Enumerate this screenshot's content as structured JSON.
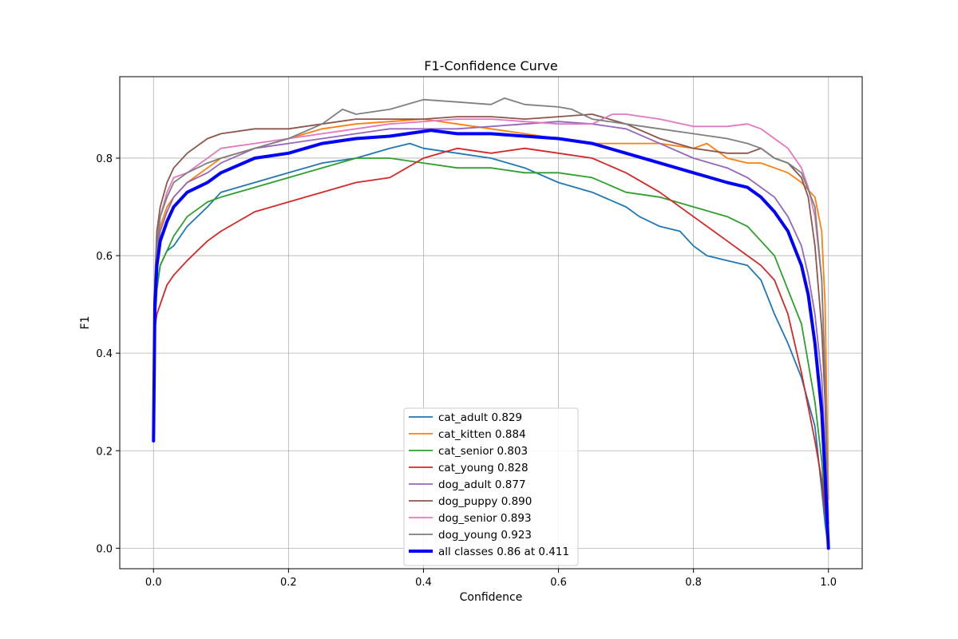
{
  "chart_data": {
    "type": "line",
    "title": "F1-Confidence Curve",
    "xlabel": "Confidence",
    "ylabel": "F1",
    "xlim": [
      -0.05,
      1.05
    ],
    "ylim": [
      -0.042,
      0.967
    ],
    "xticks": [
      0.0,
      0.2,
      0.4,
      0.6,
      0.8,
      1.0
    ],
    "xtick_labels": [
      "0.0",
      "0.2",
      "0.4",
      "0.6",
      "0.8",
      "1.0"
    ],
    "yticks": [
      0.0,
      0.2,
      0.4,
      0.6,
      0.8
    ],
    "ytick_labels": [
      "0.0",
      "0.2",
      "0.4",
      "0.6",
      "0.8"
    ],
    "grid": true,
    "legend_position": "bottom-center",
    "series": [
      {
        "name": "cat_adult 0.829",
        "color": "#1f77b4",
        "width": 1.8,
        "x": [
          0.0,
          0.002,
          0.005,
          0.01,
          0.02,
          0.03,
          0.05,
          0.08,
          0.1,
          0.15,
          0.2,
          0.25,
          0.3,
          0.35,
          0.38,
          0.4,
          0.45,
          0.5,
          0.55,
          0.6,
          0.65,
          0.7,
          0.72,
          0.75,
          0.78,
          0.8,
          0.82,
          0.85,
          0.88,
          0.9,
          0.92,
          0.94,
          0.96,
          0.98,
          0.99,
          0.995,
          1.0
        ],
        "y": [
          0.22,
          0.45,
          0.53,
          0.58,
          0.61,
          0.62,
          0.66,
          0.7,
          0.73,
          0.75,
          0.77,
          0.79,
          0.8,
          0.82,
          0.83,
          0.82,
          0.81,
          0.8,
          0.78,
          0.75,
          0.73,
          0.7,
          0.68,
          0.66,
          0.65,
          0.62,
          0.6,
          0.59,
          0.58,
          0.55,
          0.48,
          0.42,
          0.35,
          0.25,
          0.12,
          0.05,
          0.0
        ]
      },
      {
        "name": "cat_kitten 0.884",
        "color": "#ff7f0e",
        "width": 1.8,
        "x": [
          0.0,
          0.002,
          0.005,
          0.01,
          0.02,
          0.03,
          0.05,
          0.08,
          0.1,
          0.15,
          0.2,
          0.25,
          0.3,
          0.35,
          0.4,
          0.45,
          0.5,
          0.55,
          0.6,
          0.65,
          0.7,
          0.75,
          0.8,
          0.82,
          0.85,
          0.88,
          0.9,
          0.92,
          0.94,
          0.96,
          0.98,
          0.99,
          0.995,
          1.0
        ],
        "y": [
          0.22,
          0.5,
          0.6,
          0.66,
          0.7,
          0.72,
          0.75,
          0.78,
          0.8,
          0.82,
          0.84,
          0.86,
          0.87,
          0.875,
          0.88,
          0.87,
          0.86,
          0.85,
          0.84,
          0.83,
          0.83,
          0.83,
          0.82,
          0.83,
          0.8,
          0.79,
          0.79,
          0.78,
          0.77,
          0.75,
          0.72,
          0.65,
          0.5,
          0.1
        ]
      },
      {
        "name": "cat_senior 0.803",
        "color": "#2ca02c",
        "width": 1.8,
        "x": [
          0.0,
          0.002,
          0.005,
          0.01,
          0.02,
          0.03,
          0.05,
          0.08,
          0.1,
          0.15,
          0.2,
          0.25,
          0.3,
          0.35,
          0.4,
          0.45,
          0.5,
          0.55,
          0.6,
          0.65,
          0.7,
          0.75,
          0.8,
          0.85,
          0.88,
          0.9,
          0.92,
          0.94,
          0.96,
          0.97,
          0.98,
          0.99,
          0.995,
          1.0
        ],
        "y": [
          0.22,
          0.48,
          0.54,
          0.58,
          0.61,
          0.64,
          0.68,
          0.71,
          0.72,
          0.74,
          0.76,
          0.78,
          0.8,
          0.8,
          0.79,
          0.78,
          0.78,
          0.77,
          0.77,
          0.76,
          0.73,
          0.72,
          0.7,
          0.68,
          0.66,
          0.63,
          0.6,
          0.53,
          0.46,
          0.38,
          0.3,
          0.18,
          0.08,
          0.0
        ]
      },
      {
        "name": "cat_young 0.828",
        "color": "#d62728",
        "width": 1.8,
        "x": [
          0.0,
          0.002,
          0.005,
          0.01,
          0.02,
          0.03,
          0.05,
          0.08,
          0.1,
          0.15,
          0.2,
          0.25,
          0.3,
          0.35,
          0.4,
          0.45,
          0.5,
          0.55,
          0.6,
          0.65,
          0.7,
          0.75,
          0.8,
          0.85,
          0.88,
          0.9,
          0.92,
          0.94,
          0.96,
          0.98,
          0.99,
          0.995,
          1.0
        ],
        "y": [
          0.22,
          0.45,
          0.48,
          0.5,
          0.54,
          0.56,
          0.59,
          0.63,
          0.65,
          0.69,
          0.71,
          0.73,
          0.75,
          0.76,
          0.8,
          0.82,
          0.81,
          0.82,
          0.81,
          0.8,
          0.77,
          0.73,
          0.68,
          0.63,
          0.6,
          0.58,
          0.55,
          0.48,
          0.36,
          0.22,
          0.14,
          0.08,
          0.02
        ]
      },
      {
        "name": "dog_adult 0.877",
        "color": "#9467bd",
        "width": 1.8,
        "x": [
          0.0,
          0.002,
          0.005,
          0.01,
          0.02,
          0.03,
          0.05,
          0.08,
          0.1,
          0.15,
          0.2,
          0.25,
          0.3,
          0.35,
          0.4,
          0.45,
          0.5,
          0.55,
          0.6,
          0.65,
          0.7,
          0.75,
          0.8,
          0.85,
          0.88,
          0.9,
          0.92,
          0.94,
          0.96,
          0.97,
          0.98,
          0.99,
          0.995,
          1.0
        ],
        "y": [
          0.22,
          0.5,
          0.6,
          0.65,
          0.69,
          0.72,
          0.75,
          0.77,
          0.79,
          0.82,
          0.83,
          0.84,
          0.85,
          0.86,
          0.86,
          0.86,
          0.865,
          0.87,
          0.875,
          0.87,
          0.86,
          0.83,
          0.8,
          0.78,
          0.76,
          0.74,
          0.72,
          0.68,
          0.62,
          0.56,
          0.48,
          0.35,
          0.2,
          0.0
        ]
      },
      {
        "name": "dog_puppy 0.890",
        "color": "#8c564b",
        "width": 1.8,
        "x": [
          0.0,
          0.002,
          0.005,
          0.01,
          0.02,
          0.03,
          0.05,
          0.08,
          0.1,
          0.15,
          0.2,
          0.25,
          0.3,
          0.35,
          0.4,
          0.45,
          0.5,
          0.55,
          0.6,
          0.65,
          0.7,
          0.75,
          0.8,
          0.85,
          0.88,
          0.9,
          0.92,
          0.94,
          0.96,
          0.97,
          0.98,
          0.99,
          0.995,
          1.0
        ],
        "y": [
          0.22,
          0.55,
          0.65,
          0.7,
          0.75,
          0.78,
          0.81,
          0.84,
          0.85,
          0.86,
          0.86,
          0.87,
          0.88,
          0.88,
          0.88,
          0.885,
          0.885,
          0.88,
          0.885,
          0.89,
          0.87,
          0.84,
          0.82,
          0.81,
          0.81,
          0.82,
          0.8,
          0.79,
          0.76,
          0.72,
          0.62,
          0.45,
          0.3,
          0.02
        ]
      },
      {
        "name": "dog_senior 0.893",
        "color": "#e377c2",
        "width": 1.8,
        "x": [
          0.0,
          0.002,
          0.005,
          0.01,
          0.02,
          0.03,
          0.05,
          0.08,
          0.1,
          0.15,
          0.2,
          0.25,
          0.3,
          0.35,
          0.4,
          0.45,
          0.5,
          0.55,
          0.6,
          0.65,
          0.68,
          0.7,
          0.75,
          0.8,
          0.85,
          0.88,
          0.9,
          0.92,
          0.94,
          0.96,
          0.97,
          0.98,
          0.99,
          0.995,
          1.0
        ],
        "y": [
          0.22,
          0.52,
          0.62,
          0.68,
          0.73,
          0.76,
          0.77,
          0.8,
          0.82,
          0.83,
          0.84,
          0.85,
          0.86,
          0.87,
          0.875,
          0.88,
          0.88,
          0.875,
          0.87,
          0.87,
          0.89,
          0.89,
          0.88,
          0.865,
          0.865,
          0.87,
          0.86,
          0.84,
          0.82,
          0.78,
          0.74,
          0.68,
          0.55,
          0.35,
          0.05
        ]
      },
      {
        "name": "dog_young 0.923",
        "color": "#7f7f7f",
        "width": 1.8,
        "x": [
          0.0,
          0.002,
          0.005,
          0.01,
          0.02,
          0.03,
          0.05,
          0.08,
          0.1,
          0.15,
          0.2,
          0.25,
          0.28,
          0.3,
          0.35,
          0.4,
          0.45,
          0.5,
          0.52,
          0.55,
          0.6,
          0.62,
          0.65,
          0.7,
          0.75,
          0.8,
          0.85,
          0.88,
          0.9,
          0.92,
          0.94,
          0.96,
          0.98,
          0.99,
          0.995,
          1.0
        ],
        "y": [
          0.22,
          0.5,
          0.62,
          0.68,
          0.72,
          0.75,
          0.77,
          0.79,
          0.8,
          0.82,
          0.84,
          0.87,
          0.9,
          0.89,
          0.9,
          0.92,
          0.915,
          0.91,
          0.923,
          0.91,
          0.905,
          0.9,
          0.88,
          0.87,
          0.86,
          0.85,
          0.84,
          0.83,
          0.82,
          0.8,
          0.79,
          0.77,
          0.7,
          0.55,
          0.35,
          0.05
        ]
      },
      {
        "name": "all classes 0.86 at 0.411",
        "color": "#0000ff",
        "width": 4,
        "x": [
          0.0,
          0.002,
          0.005,
          0.01,
          0.02,
          0.03,
          0.05,
          0.08,
          0.1,
          0.15,
          0.2,
          0.25,
          0.3,
          0.35,
          0.411,
          0.45,
          0.5,
          0.55,
          0.6,
          0.65,
          0.7,
          0.75,
          0.8,
          0.85,
          0.88,
          0.9,
          0.92,
          0.94,
          0.96,
          0.97,
          0.98,
          0.99,
          0.995,
          1.0
        ],
        "y": [
          0.22,
          0.5,
          0.58,
          0.63,
          0.67,
          0.7,
          0.73,
          0.75,
          0.77,
          0.8,
          0.81,
          0.83,
          0.84,
          0.845,
          0.857,
          0.85,
          0.85,
          0.845,
          0.84,
          0.83,
          0.81,
          0.79,
          0.77,
          0.75,
          0.74,
          0.72,
          0.69,
          0.65,
          0.58,
          0.52,
          0.42,
          0.28,
          0.15,
          0.0
        ]
      }
    ]
  }
}
